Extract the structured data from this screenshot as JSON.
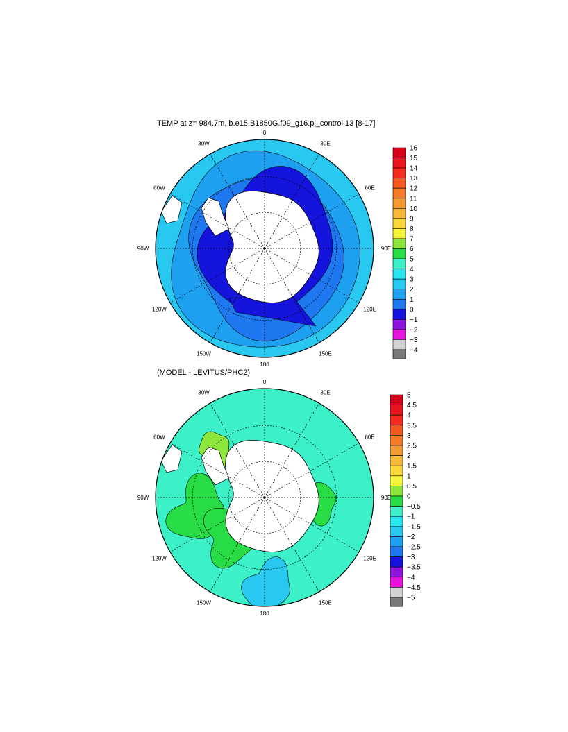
{
  "titles": {
    "top": "TEMP at z= 984.7m, b.e15.B1850G.f09_g16.pi_control.13 [8-17]",
    "bottom": "(MODEL - LEVITUS/PHC2)"
  },
  "chart_data": [
    {
      "type": "polar-map",
      "title": "TEMP at z= 984.7m, b.e15.B1850G.f09_g16.pi_control.13 [8-17]",
      "projection": "south polar stereographic",
      "longitude_labels": [
        "0",
        "30E",
        "60E",
        "90E",
        "120E",
        "150E",
        "180",
        "150W",
        "120W",
        "90W",
        "60W",
        "30W"
      ],
      "colorbar": {
        "labels": [
          "16",
          "15",
          "14",
          "13",
          "12",
          "11",
          "10",
          "9",
          "8",
          "7",
          "6",
          "5",
          "4",
          "3",
          "2",
          "1",
          "0",
          "−1",
          "−2",
          "−3",
          "−4"
        ],
        "colors": [
          "#d4001a",
          "#e8141e",
          "#f42a1e",
          "#f4581e",
          "#f47a28",
          "#f49a32",
          "#f8b83a",
          "#fad83c",
          "#f4f43a",
          "#8ce63c",
          "#28dc46",
          "#3cf0c8",
          "#28e6f0",
          "#28c8f0",
          "#1ea0f0",
          "#1e78f0",
          "#1414dc",
          "#8c14dc",
          "#e614dc",
          "#d2d2d2"
        ],
        "overflow_color": "#787878"
      },
      "regions": {
        "land_color": "#ffffff",
        "near_shelf_color": "#1414dc",
        "mid_ring_color": "#1e78f0",
        "outer_ring_color": "#1ea0f0",
        "edge_color": "#28c8f0"
      }
    },
    {
      "type": "polar-map",
      "title": "(MODEL - LEVITUS/PHC2)",
      "projection": "south polar stereographic",
      "longitude_labels": [
        "0",
        "30E",
        "60E",
        "90E",
        "120E",
        "150E",
        "180",
        "150W",
        "120W",
        "90W",
        "60W",
        "30W"
      ],
      "colorbar": {
        "labels": [
          "5",
          "4.5",
          "4",
          "3.5",
          "3",
          "2.5",
          "2",
          "1.5",
          "1",
          "0.5",
          "0",
          "−0.5",
          "−1",
          "−1.5",
          "−2",
          "−2.5",
          "−3",
          "−3.5",
          "−4",
          "−4.5",
          "−5"
        ],
        "colors": [
          "#d4001a",
          "#e8141e",
          "#f42a1e",
          "#f4581e",
          "#f47a28",
          "#f49a32",
          "#f8b83a",
          "#fad83c",
          "#f4f43a",
          "#8ce63c",
          "#28dc46",
          "#3cf0c8",
          "#28e6f0",
          "#28c8f0",
          "#1ea0f0",
          "#1e78f0",
          "#1414dc",
          "#8c14dc",
          "#e614dc",
          "#d2d2d2"
        ],
        "overflow_color": "#787878"
      },
      "regions": {
        "land_color": "#ffffff",
        "dominant_color": "#3cf0c8",
        "positive_patch_color": "#28dc46",
        "small_warm_patch_color": "#8ce63c",
        "negative_color": "#28c8f0"
      }
    }
  ]
}
